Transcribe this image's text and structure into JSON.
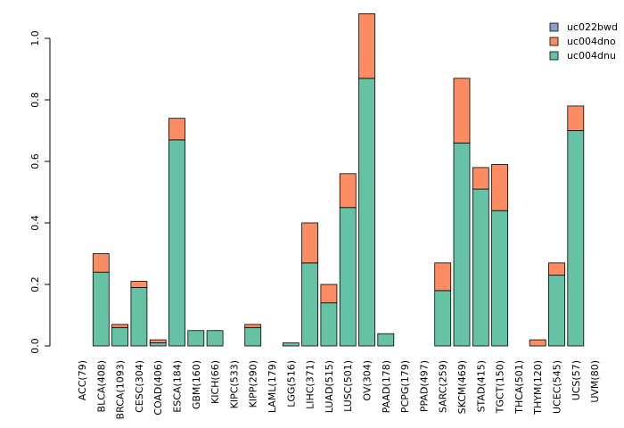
{
  "chart_data": {
    "type": "bar",
    "stacked": true,
    "title": "",
    "xlabel": "",
    "ylabel": "",
    "ylim": [
      0,
      1.08
    ],
    "yticks": [
      "0.0",
      "0.2",
      "0.4",
      "0.6",
      "0.8",
      "1.0"
    ],
    "grid": false,
    "legend_position": "top-right",
    "categories": [
      "ACC(79)",
      "BLCA(408)",
      "BRCA(1093)",
      "CESC(304)",
      "COAD(406)",
      "ESCA(184)",
      "GBM(160)",
      "KICH(66)",
      "KIPC(533)",
      "KIPP(290)",
      "LAML(179)",
      "LGG(516)",
      "LIHC(371)",
      "LUAD(515)",
      "LUSC(501)",
      "OV(304)",
      "PAAD(178)",
      "PCPG(179)",
      "PPAD(497)",
      "SARC(259)",
      "SKCM(469)",
      "STAD(415)",
      "TGCT(150)",
      "THCA(501)",
      "THYM(120)",
      "UCEC(545)",
      "UCS(57)",
      "UVM(80)"
    ],
    "series": [
      {
        "name": "uc004dnu",
        "color": "#66c2a5",
        "values": [
          0,
          0.24,
          0.06,
          0.19,
          0.01,
          0.67,
          0.05,
          0.05,
          0,
          0.06,
          0,
          0.01,
          0.27,
          0.14,
          0.45,
          0.87,
          0.04,
          0,
          0,
          0.18,
          0.66,
          0.51,
          0.44,
          0,
          0,
          0.23,
          0.7,
          0
        ]
      },
      {
        "name": "uc004dno",
        "color": "#fc8d62",
        "values": [
          0,
          0.06,
          0.01,
          0.02,
          0.01,
          0.07,
          0,
          0,
          0,
          0.01,
          0,
          0,
          0.13,
          0.06,
          0.11,
          0.21,
          0,
          0,
          0,
          0.09,
          0.21,
          0.07,
          0.15,
          0,
          0.02,
          0.04,
          0.08,
          0
        ]
      },
      {
        "name": "uc022bwd",
        "color": "#8da0cb",
        "values": [
          0,
          0,
          0,
          0,
          0,
          0,
          0,
          0,
          0,
          0,
          0,
          0,
          0,
          0,
          0,
          0,
          0,
          0,
          0,
          0,
          0,
          0,
          0,
          0,
          0,
          0,
          0,
          0
        ]
      }
    ],
    "legend": [
      "uc022bwd",
      "uc004dno",
      "uc004dnu"
    ]
  }
}
